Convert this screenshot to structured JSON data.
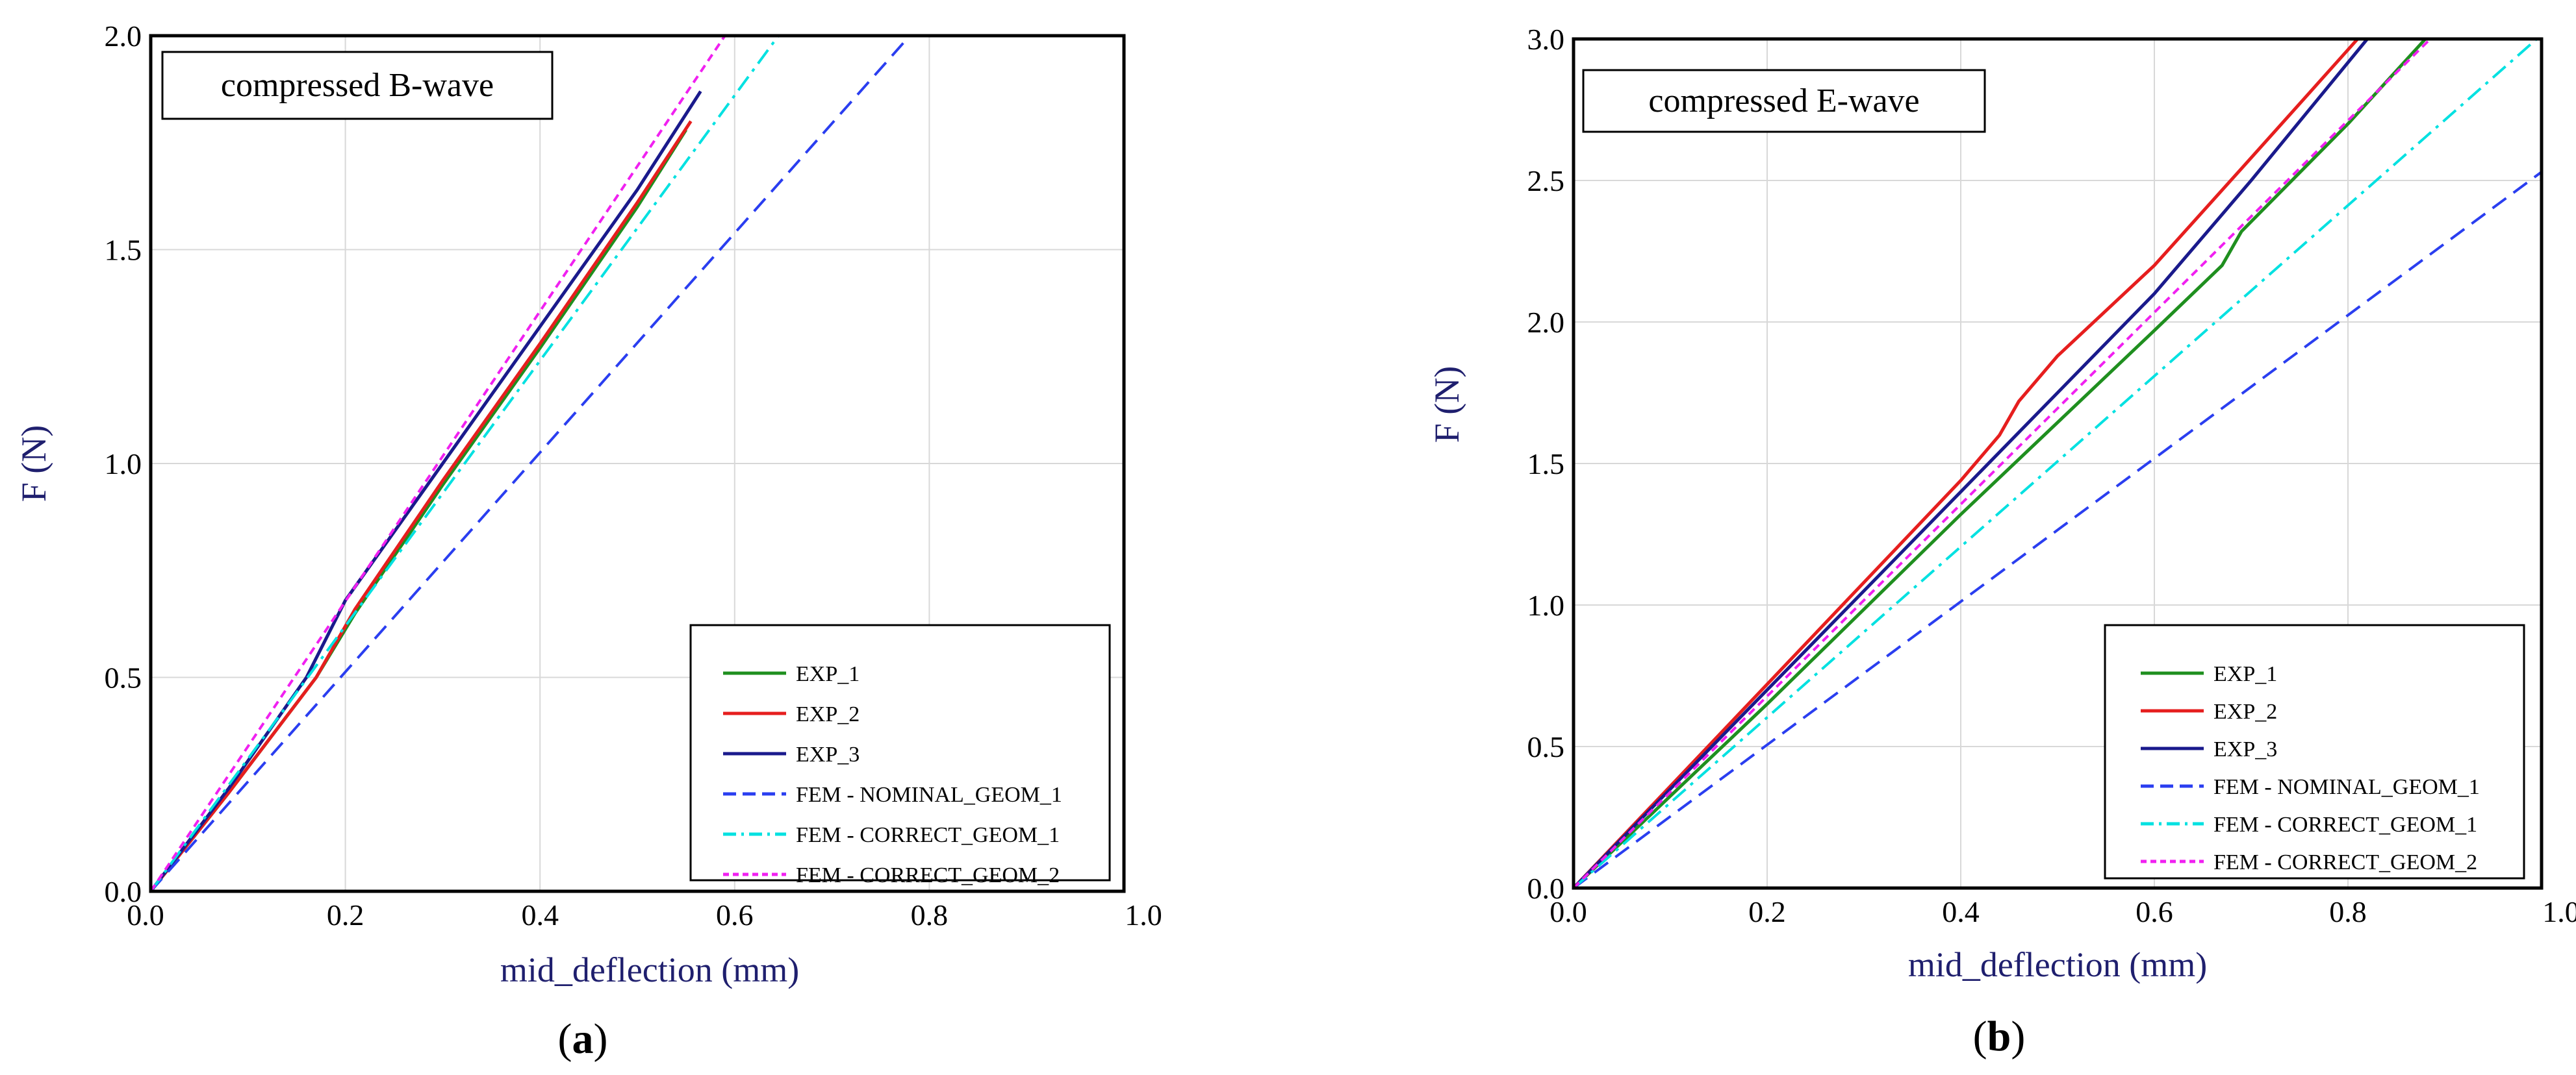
{
  "chart_data": [
    {
      "type": "line",
      "panel_label": "(a)",
      "panel_letter": "a",
      "title": "compressed B-wave",
      "xlabel": "mid_deflection (mm)",
      "ylabel": "F (N)",
      "xlim": [
        0.0,
        1.0
      ],
      "ylim": [
        0.0,
        2.0
      ],
      "x_ticks": [
        "0.0",
        "0.2",
        "0.4",
        "0.6",
        "0.8",
        "1.0"
      ],
      "y_ticks": [
        "0.0",
        "0.5",
        "1.0",
        "1.5",
        "2.0"
      ],
      "grid": true,
      "legend_position": "bottom-right",
      "series": [
        {
          "name": "EXP_1",
          "color": "#1f8f1f",
          "style": "solid",
          "x": [
            0.0,
            0.08,
            0.17,
            0.21,
            0.3,
            0.4,
            0.5,
            0.55
          ],
          "y": [
            0.0,
            0.23,
            0.5,
            0.65,
            0.95,
            1.27,
            1.6,
            1.78
          ]
        },
        {
          "name": "EXP_2",
          "color": "#e61e1e",
          "style": "solid",
          "x": [
            0.0,
            0.08,
            0.17,
            0.21,
            0.3,
            0.4,
            0.5,
            0.555
          ],
          "y": [
            0.0,
            0.23,
            0.5,
            0.66,
            0.96,
            1.28,
            1.61,
            1.8
          ]
        },
        {
          "name": "EXP_3",
          "color": "#1a1a8c",
          "style": "solid",
          "x": [
            0.0,
            0.08,
            0.16,
            0.2,
            0.3,
            0.4,
            0.5,
            0.565
          ],
          "y": [
            0.0,
            0.24,
            0.5,
            0.68,
            1.0,
            1.32,
            1.64,
            1.87
          ]
        },
        {
          "name": "FEM - NOMINAL_GEOM_1",
          "color": "#2a3ef0",
          "style": "dashed",
          "x": [
            0.0,
            0.78
          ],
          "y": [
            0.0,
            2.0
          ]
        },
        {
          "name": "FEM - CORRECT_GEOM_1",
          "color": "#00e1e1",
          "style": "dashdot",
          "x": [
            0.0,
            0.645
          ],
          "y": [
            0.0,
            2.0
          ]
        },
        {
          "name": "FEM - CORRECT_GEOM_2",
          "color": "#f020f0",
          "style": "dotted",
          "x": [
            0.0,
            0.59
          ],
          "y": [
            0.0,
            2.0
          ]
        }
      ]
    },
    {
      "type": "line",
      "panel_label": "(b)",
      "panel_letter": "b",
      "title": "compressed E-wave",
      "xlabel": "mid_deflection (mm)",
      "ylabel": "F (N)",
      "xlim": [
        0.0,
        1.0
      ],
      "ylim": [
        0.0,
        3.0
      ],
      "x_ticks": [
        "0.0",
        "0.2",
        "0.4",
        "0.6",
        "0.8",
        "1.0"
      ],
      "y_ticks": [
        "0.0",
        "0.5",
        "1.0",
        "1.5",
        "2.0",
        "2.5",
        "3.0"
      ],
      "grid": true,
      "legend_position": "bottom-right",
      "series": [
        {
          "name": "EXP_1",
          "color": "#1f8f1f",
          "style": "solid",
          "x": [
            0.0,
            0.2,
            0.4,
            0.6,
            0.67,
            0.69,
            0.8,
            0.88
          ],
          "y": [
            0.0,
            0.65,
            1.32,
            1.97,
            2.2,
            2.32,
            2.7,
            3.0
          ]
        },
        {
          "name": "EXP_2",
          "color": "#e61e1e",
          "style": "solid",
          "x": [
            0.0,
            0.2,
            0.4,
            0.44,
            0.46,
            0.5,
            0.6,
            0.7,
            0.81
          ],
          "y": [
            0.0,
            0.72,
            1.44,
            1.6,
            1.72,
            1.88,
            2.2,
            2.58,
            3.0
          ]
        },
        {
          "name": "EXP_3",
          "color": "#1a1a8c",
          "style": "solid",
          "x": [
            0.0,
            0.2,
            0.4,
            0.6,
            0.7,
            0.82
          ],
          "y": [
            0.0,
            0.7,
            1.4,
            2.1,
            2.5,
            3.0
          ]
        },
        {
          "name": "FEM - NOMINAL_GEOM_1",
          "color": "#2a3ef0",
          "style": "dashed",
          "x": [
            0.0,
            1.0
          ],
          "y": [
            0.0,
            2.53
          ]
        },
        {
          "name": "FEM - CORRECT_GEOM_1",
          "color": "#00e1e1",
          "style": "dashdot",
          "x": [
            0.0,
            0.995
          ],
          "y": [
            0.0,
            3.0
          ]
        },
        {
          "name": "FEM - CORRECT_GEOM_2",
          "color": "#f020f0",
          "style": "dotted",
          "x": [
            0.0,
            0.885
          ],
          "y": [
            0.0,
            3.0
          ]
        }
      ]
    }
  ]
}
